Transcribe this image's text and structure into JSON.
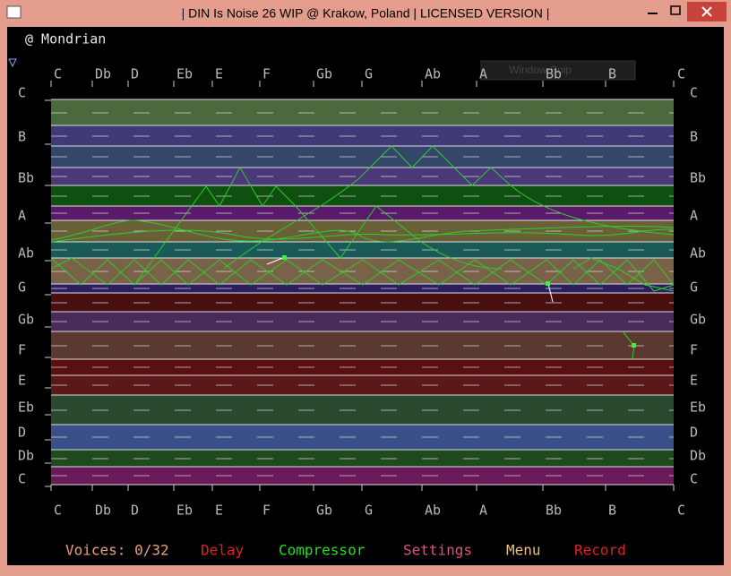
{
  "window": {
    "title": "| DIN Is Noise 26 WIP @ Krakow, Poland | LICENSED VERSION |"
  },
  "editor": {
    "name": "@ Mondrian",
    "notes_x": [
      "C",
      "Db",
      "D",
      "Eb",
      "E",
      "F",
      "Gb",
      "G",
      "Ab",
      "A",
      "Bb",
      "B",
      "C"
    ],
    "notes_y": [
      "C",
      "B",
      "Bb",
      "A",
      "Ab",
      "G",
      "Gb",
      "F",
      "E",
      "Eb",
      "D",
      "Db",
      "C"
    ]
  },
  "overlay": "Window Snip",
  "menu": {
    "voices": "Voices: 0/32",
    "items": [
      "Delay",
      "Compressor",
      "Settings",
      "Menu",
      "Record"
    ]
  }
}
